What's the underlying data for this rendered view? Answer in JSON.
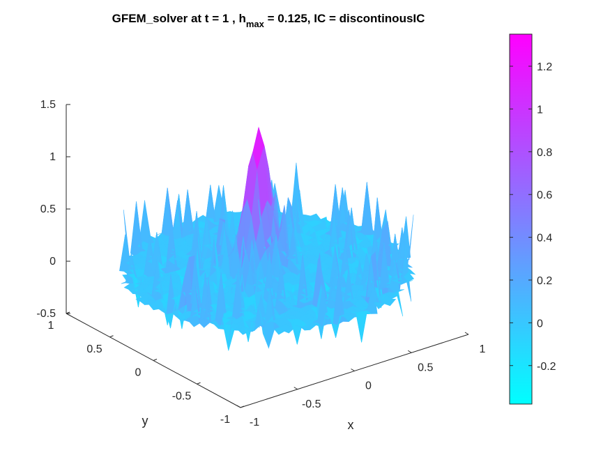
{
  "chart_data": {
    "type": "surface",
    "title": {
      "prefix": "GFEM_solver at t = 1 , h",
      "subscript": "max",
      "suffix": " = 0.125, IC = discontinousIC"
    },
    "xlabel": "x",
    "ylabel": "y",
    "zlabel": "",
    "xlim": [
      -1,
      1
    ],
    "ylim": [
      -1,
      1
    ],
    "zlim": [
      -0.5,
      1.5
    ],
    "x_ticks": [
      "-1",
      "-0.5",
      "0",
      "0.5",
      "1"
    ],
    "y_ticks": [
      "-1",
      "-0.5",
      "0",
      "0.5",
      "1"
    ],
    "z_ticks": [
      "-0.5",
      "0",
      "0.5",
      "1",
      "1.5"
    ],
    "domain": "unit disk",
    "surface_summary": {
      "peak_value": 1.35,
      "peak_location_xy": [
        0.0,
        0.1
      ],
      "min_value": -0.38,
      "background_level": 0.0
    },
    "colorbar": {
      "colormap": "cool",
      "range": [
        -0.38,
        1.35
      ],
      "ticks": [
        "-0.2",
        "0",
        "0.2",
        "0.4",
        "0.6",
        "0.8",
        "1",
        "1.2"
      ],
      "color_low": "#00ffff",
      "color_high": "#ff00ff"
    }
  }
}
